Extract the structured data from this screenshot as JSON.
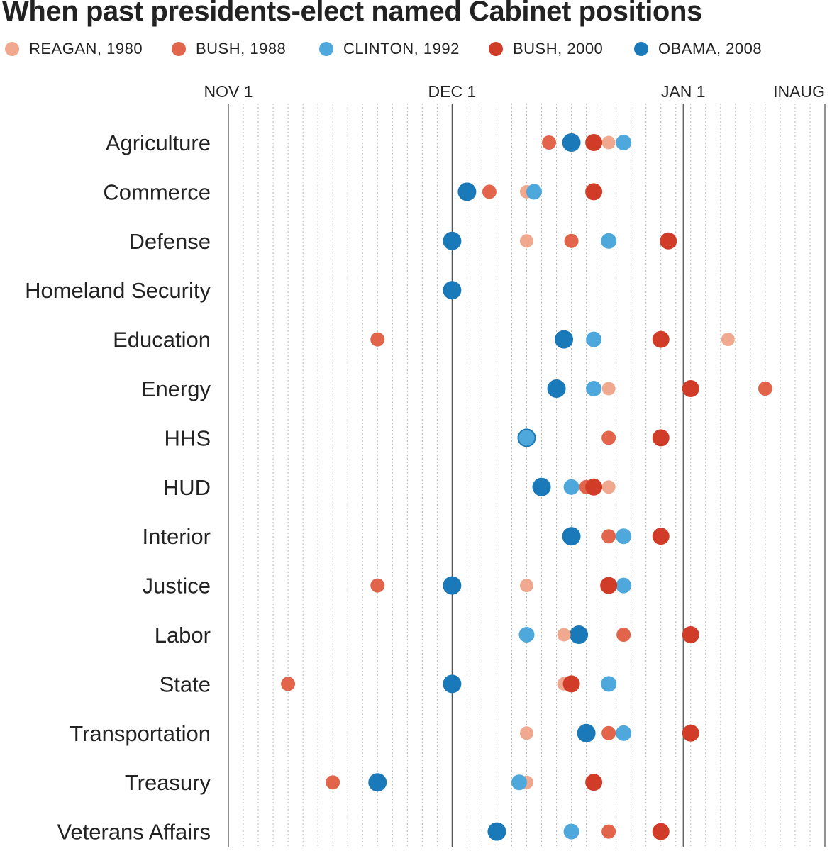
{
  "chart_data": {
    "type": "scatter",
    "title": "When past presidents-elect named Cabinet positions",
    "x_unit": "days after Nov 1",
    "xlim": [
      0,
      80
    ],
    "ticks": [
      {
        "label": "NOV 1",
        "value": 0
      },
      {
        "label": "DEC 1",
        "value": 30
      },
      {
        "label": "JAN 1",
        "value": 61
      },
      {
        "label": "INAUG",
        "value": 80
      }
    ],
    "minor_grid_step": 2,
    "series": [
      {
        "name": "REAGAN, 1980",
        "color": "#f0a98e"
      },
      {
        "name": "BUSH, 1988",
        "color": "#e2644a"
      },
      {
        "name": "CLINTON, 1992",
        "color": "#4ea8dc"
      },
      {
        "name": "BUSH, 2000",
        "color": "#d03c27"
      },
      {
        "name": "OBAMA, 2008",
        "color": "#1a79b8"
      }
    ],
    "categories": [
      "Agriculture",
      "Commerce",
      "Defense",
      "Homeland Security",
      "Education",
      "Energy",
      "HHS",
      "HUD",
      "Interior",
      "Justice",
      "Labor",
      "State",
      "Transportation",
      "Treasury",
      "Veterans Affairs"
    ],
    "points": [
      [
        51,
        43,
        53,
        49,
        46
      ],
      [
        40,
        35,
        41,
        49,
        32
      ],
      [
        40,
        46,
        51,
        59,
        30
      ],
      [
        null,
        null,
        null,
        null,
        30
      ],
      [
        67,
        20,
        49,
        58,
        45
      ],
      [
        51,
        72,
        49,
        62,
        44
      ],
      [
        40,
        51,
        40,
        58,
        40
      ],
      [
        51,
        48,
        46,
        49,
        42
      ],
      [
        51,
        51,
        53,
        58,
        46
      ],
      [
        40,
        20,
        53,
        51,
        30
      ],
      [
        45,
        53,
        40,
        62,
        47
      ],
      [
        45,
        8,
        51,
        46,
        30
      ],
      [
        40,
        51,
        53,
        62,
        48
      ],
      [
        40,
        14,
        39,
        49,
        20
      ],
      [
        null,
        51,
        46,
        58,
        36
      ]
    ]
  }
}
